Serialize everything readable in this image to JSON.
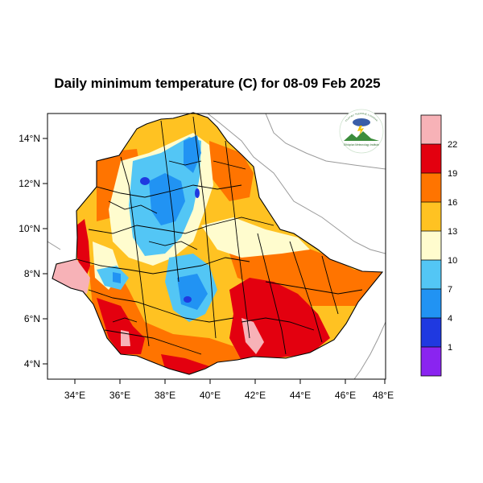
{
  "title": "Daily minimum temperature (C) for 08-09 Feb 2025",
  "longitude_ticks": [
    "34°E",
    "36°E",
    "38°E",
    "40°E",
    "42°E",
    "44°E",
    "46°E",
    "48°E"
  ],
  "latitude_ticks": [
    "14°N",
    "12°N",
    "10°N",
    "8°N",
    "6°N",
    "4°N"
  ],
  "colorbar": {
    "labels": [
      "22",
      "19",
      "16",
      "13",
      "10",
      "7",
      "4",
      "1"
    ],
    "colors": [
      "#f7b2b7",
      "#e3000f",
      "#ff7400",
      "#ffc222",
      "#fffcce",
      "#53c6f5",
      "#2193f3",
      "#1f39e0",
      "#8a24f0"
    ]
  },
  "logo": {
    "arc_text": "የኢትዮጵያ ሚቲዎሮሎጂ ኢንስቲትዩት",
    "caption": "Ethiopian Meteorology Institute"
  },
  "map_colors": {
    "land_pink": "#f7b2b7",
    "land_red": "#e3000f",
    "land_orange": "#ff7400",
    "land_yellow": "#ffc222",
    "land_cream": "#fffcce",
    "land_lightblue": "#53c6f5",
    "land_blue": "#2193f3",
    "land_darkblue": "#1f39e0"
  }
}
